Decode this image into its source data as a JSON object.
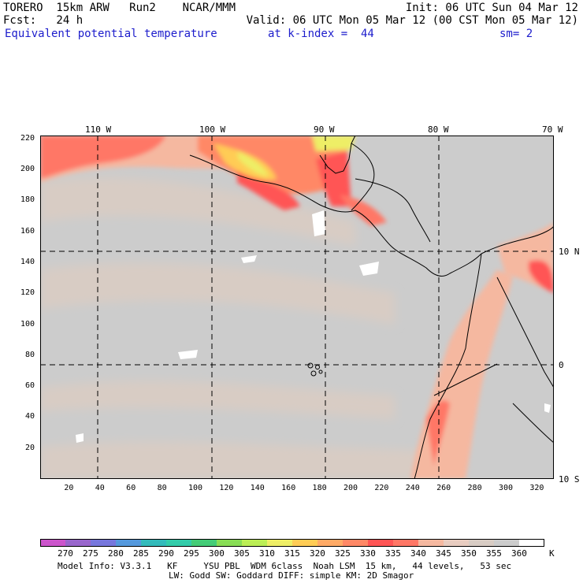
{
  "header": {
    "line1_left": "TORERO  15km ARW   Run2    NCAR/MMM",
    "line1_right": "Init: 06 UTC Sun 04 Mar 12",
    "line2_left": "Fcst:   24 h",
    "line2_right": "Valid: 06 UTC Mon 05 Mar 12 (00 CST Mon 05 Mar 12)",
    "field": "Equivalent potential temperature",
    "level": "at k-index =  44",
    "smoothing": "sm= 2"
  },
  "axes": {
    "x_ticks": [
      "20",
      "40",
      "60",
      "80",
      "100",
      "120",
      "140",
      "160",
      "180",
      "200",
      "220",
      "240",
      "260",
      "280",
      "300",
      "320"
    ],
    "y_ticks": [
      "20",
      "40",
      "60",
      "80",
      "100",
      "120",
      "140",
      "160",
      "180",
      "200",
      "220"
    ],
    "lon_labels": [
      "110 W",
      "100 W",
      "90 W",
      "80 W",
      "70 W"
    ],
    "lat_labels": [
      "10 N",
      "0",
      "10 S"
    ]
  },
  "colorbar": {
    "levels": [
      "270",
      "275",
      "280",
      "285",
      "290",
      "295",
      "300",
      "305",
      "310",
      "315",
      "320",
      "325",
      "330",
      "335",
      "340",
      "345",
      "350",
      "355",
      "360"
    ],
    "unit": "K",
    "colors": [
      "#cc55cc",
      "#9966cc",
      "#7777dd",
      "#5599dd",
      "#33bbbb",
      "#33ccaa",
      "#44cc77",
      "#88dd55",
      "#bbee55",
      "#eeee66",
      "#ffcc55",
      "#ffaa66",
      "#ff8866",
      "#ff5555",
      "#ff7766",
      "#f5b8a0",
      "#e8ccc0",
      "#d8ccc4",
      "#cccccc",
      "#ffffff"
    ]
  },
  "footer": {
    "line1": "Model Info: V3.3.1   KF     YSU PBL  WDM 6class  Noah LSM  15 km,   44 levels,   53 sec",
    "line2": "LW: Godd SW: Goddard DIFF: simple KM: 2D Smagor"
  }
}
